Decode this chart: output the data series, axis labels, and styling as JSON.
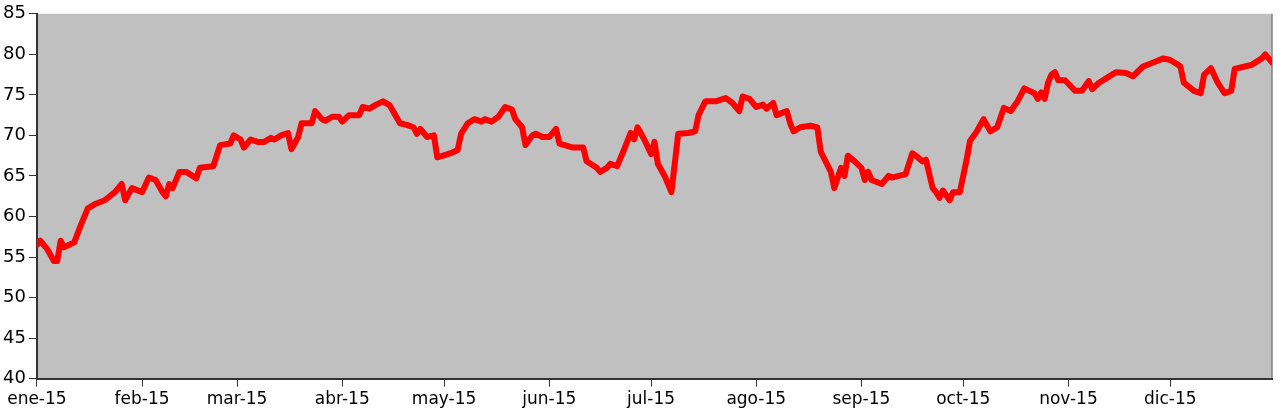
{
  "chart_data": {
    "type": "line",
    "x": [
      "2015-01-01",
      "2015-01-02",
      "2015-01-04",
      "2015-01-06",
      "2015-01-07",
      "2015-01-08",
      "2015-01-09",
      "2015-01-12",
      "2015-01-14",
      "2015-01-16",
      "2015-01-18",
      "2015-01-21",
      "2015-01-24",
      "2015-01-26",
      "2015-01-27",
      "2015-01-29",
      "2015-02-01",
      "2015-02-03",
      "2015-02-05",
      "2015-02-07",
      "2015-02-08",
      "2015-02-09",
      "2015-02-10",
      "2015-02-12",
      "2015-02-14",
      "2015-02-17",
      "2015-02-18",
      "2015-02-22",
      "2015-02-24",
      "2015-02-27",
      "2015-02-28",
      "2015-03-02",
      "2015-03-03",
      "2015-03-05",
      "2015-03-07",
      "2015-03-09",
      "2015-03-11",
      "2015-03-12",
      "2015-03-14",
      "2015-03-16",
      "2015-03-17",
      "2015-03-19",
      "2015-03-20",
      "2015-03-23",
      "2015-03-24",
      "2015-03-26",
      "2015-03-27",
      "2015-03-29",
      "2015-03-31",
      "2015-04-01",
      "2015-04-03",
      "2015-04-06",
      "2015-04-07",
      "2015-04-09",
      "2015-04-11",
      "2015-04-13",
      "2015-04-15",
      "2015-04-18",
      "2015-04-20",
      "2015-04-22",
      "2015-04-23",
      "2015-04-24",
      "2015-04-26",
      "2015-04-28",
      "2015-04-29",
      "2015-05-03",
      "2015-05-05",
      "2015-05-06",
      "2015-05-08",
      "2015-05-10",
      "2015-05-12",
      "2015-05-13",
      "2015-05-15",
      "2015-05-17",
      "2015-05-19",
      "2015-05-21",
      "2015-05-22",
      "2015-05-24",
      "2015-05-25",
      "2015-05-27",
      "2015-05-28",
      "2015-05-30",
      "2015-06-01",
      "2015-06-03",
      "2015-06-04",
      "2015-06-08",
      "2015-06-11",
      "2015-06-12",
      "2015-06-15",
      "2015-06-16",
      "2015-06-18",
      "2015-06-19",
      "2015-06-21",
      "2015-06-23",
      "2015-06-25",
      "2015-06-26",
      "2015-06-27",
      "2015-06-29",
      "2015-07-01",
      "2015-07-02",
      "2015-07-03",
      "2015-07-05",
      "2015-07-07",
      "2015-07-09",
      "2015-07-12",
      "2015-07-14",
      "2015-07-15",
      "2015-07-17",
      "2015-07-20",
      "2015-07-23",
      "2015-07-25",
      "2015-07-27",
      "2015-07-28",
      "2015-07-30",
      "2015-08-01",
      "2015-08-03",
      "2015-08-04",
      "2015-08-06",
      "2015-08-07",
      "2015-08-10",
      "2015-08-11",
      "2015-08-12",
      "2015-08-14",
      "2015-08-17",
      "2015-08-19",
      "2015-08-20",
      "2015-08-23",
      "2015-08-24",
      "2015-08-26",
      "2015-08-27",
      "2015-08-28",
      "2015-08-30",
      "2015-09-01",
      "2015-09-02",
      "2015-09-03",
      "2015-09-04",
      "2015-09-07",
      "2015-09-09",
      "2015-09-10",
      "2015-09-12",
      "2015-09-14",
      "2015-09-16",
      "2015-09-17",
      "2015-09-19",
      "2015-09-20",
      "2015-09-22",
      "2015-09-23",
      "2015-09-24",
      "2015-09-25",
      "2015-09-27",
      "2015-09-28",
      "2015-09-30",
      "2015-10-02",
      "2015-10-03",
      "2015-10-05",
      "2015-10-07",
      "2015-10-09",
      "2015-10-11",
      "2015-10-13",
      "2015-10-15",
      "2015-10-17",
      "2015-10-19",
      "2015-10-22",
      "2015-10-23",
      "2015-10-24",
      "2015-10-25",
      "2015-10-26",
      "2015-10-27",
      "2015-10-28",
      "2015-10-29",
      "2015-10-31",
      "2015-11-03",
      "2015-11-05",
      "2015-11-07",
      "2015-11-08",
      "2015-11-10",
      "2015-11-12",
      "2015-11-15",
      "2015-11-18",
      "2015-11-20",
      "2015-11-23",
      "2015-11-26",
      "2015-11-29",
      "2015-12-01",
      "2015-12-03",
      "2015-12-04",
      "2015-12-05",
      "2015-12-08",
      "2015-12-10",
      "2015-12-11",
      "2015-12-13",
      "2015-12-15",
      "2015-12-17",
      "2015-12-19",
      "2015-12-20",
      "2015-12-23",
      "2015-12-25",
      "2015-12-28",
      "2015-12-29",
      "2015-12-31"
    ],
    "series": [
      {
        "color": "#ff0000",
        "values": [
          56.5,
          57,
          56,
          54.5,
          54.5,
          57,
          56.2,
          56.8,
          59,
          61,
          61.5,
          62,
          63,
          64,
          62,
          63.5,
          63,
          64.8,
          64.5,
          63,
          62.5,
          64,
          63.5,
          65.5,
          65.5,
          64.7,
          66,
          66.2,
          68.8,
          69,
          70,
          69.5,
          68.5,
          69.5,
          69.2,
          69.2,
          69.7,
          69.5,
          70,
          70.3,
          68.3,
          69.8,
          71.5,
          71.5,
          73,
          72,
          71.8,
          72.3,
          72.3,
          71.7,
          72.5,
          72.5,
          73.5,
          73.3,
          73.8,
          74.2,
          73.7,
          71.5,
          71.3,
          71,
          70.2,
          70.8,
          69.8,
          70,
          67.3,
          67.8,
          68.2,
          70.2,
          71.5,
          72,
          71.7,
          72,
          71.7,
          72.3,
          73.5,
          73.2,
          72,
          71,
          68.8,
          70,
          70.2,
          69.8,
          69.8,
          70.8,
          69,
          68.5,
          68.5,
          66.8,
          66,
          65.5,
          66,
          66.5,
          66.2,
          68.2,
          70.3,
          69.5,
          71,
          69.5,
          67.7,
          69.2,
          66.5,
          65,
          63,
          70.2,
          70.3,
          70.5,
          72.5,
          74.2,
          74.2,
          74.6,
          74,
          73,
          74.8,
          74.5,
          73.5,
          73.8,
          73.3,
          74,
          72.5,
          73,
          71.5,
          70.5,
          71,
          71.2,
          71,
          68,
          65.5,
          63.5,
          66,
          65,
          67.5,
          66.8,
          66,
          64.5,
          65.5,
          64.5,
          64,
          65,
          64.8,
          65,
          65.2,
          67.8,
          67.5,
          66.8,
          67,
          63.5,
          63,
          62.3,
          63.2,
          62,
          63,
          63,
          67,
          69.3,
          70.5,
          72,
          70.5,
          71,
          73.4,
          73,
          74.2,
          75.8,
          75.2,
          74.5,
          75.3,
          74.5,
          76.5,
          77.5,
          77.8,
          76.8,
          76.8,
          75.5,
          75.5,
          76.7,
          75.7,
          76.5,
          77,
          77.8,
          77.7,
          77.3,
          78.5,
          79,
          79.5,
          79.3,
          78.8,
          78.5,
          76.5,
          75.5,
          75.2,
          77.5,
          78.3,
          76.5,
          75.2,
          75.5,
          78.2,
          78.5,
          78.7,
          79.5,
          80,
          79
        ]
      }
    ],
    "xlim": [
      "2015-01-01",
      "2015-12-31"
    ],
    "xticks": [
      {
        "value": "2015-01-01",
        "label": "ene-15"
      },
      {
        "value": "2015-02-01",
        "label": "feb-15"
      },
      {
        "value": "2015-03-01",
        "label": "mar-15"
      },
      {
        "value": "2015-04-01",
        "label": "abr-15"
      },
      {
        "value": "2015-05-01",
        "label": "may-15"
      },
      {
        "value": "2015-06-01",
        "label": "jun-15"
      },
      {
        "value": "2015-07-01",
        "label": "jul-15"
      },
      {
        "value": "2015-08-01",
        "label": "ago-15"
      },
      {
        "value": "2015-09-01",
        "label": "sep-15"
      },
      {
        "value": "2015-10-01",
        "label": "oct-15"
      },
      {
        "value": "2015-11-01",
        "label": "nov-15"
      },
      {
        "value": "2015-12-01",
        "label": "dic-15"
      }
    ],
    "ylim": [
      40,
      85
    ],
    "yticks": [
      40,
      45,
      50,
      55,
      60,
      65,
      70,
      75,
      80,
      85
    ],
    "grid": false,
    "legend": false,
    "marker": "none",
    "line_style": "solid"
  }
}
